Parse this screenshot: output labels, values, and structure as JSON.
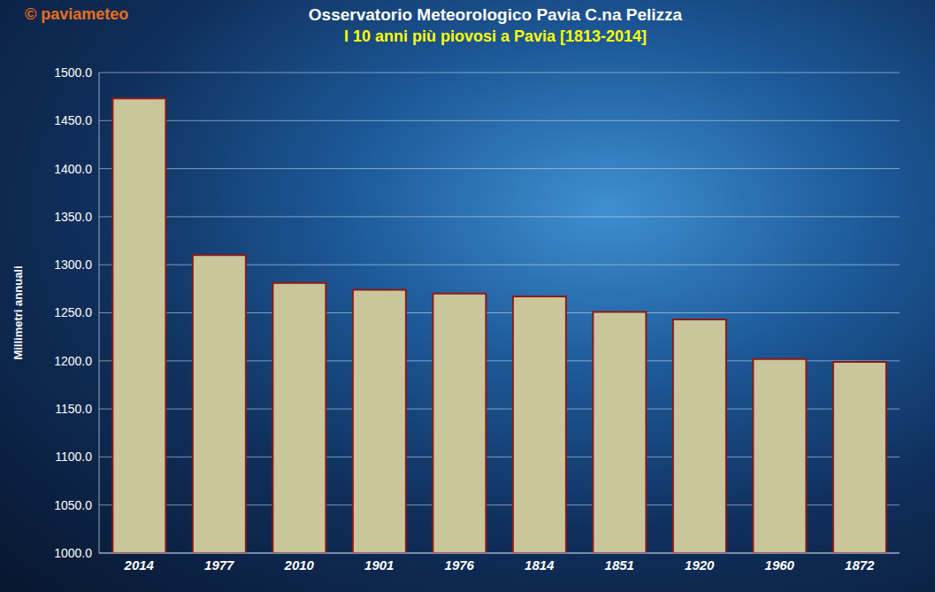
{
  "chart_data": {
    "type": "bar",
    "watermark": "© paviameteo",
    "title": "Osservatorio Meteorologico Pavia C.na Pelizza",
    "subtitle": "I 10 anni più piovosi a Pavia [1813-2014]",
    "y_label": "Millimetri annuali",
    "categories": [
      "2014",
      "1977",
      "2010",
      "1901",
      "1976",
      "1814",
      "1851",
      "1920",
      "1960",
      "1872"
    ],
    "values": [
      1473,
      1310,
      1281,
      1274,
      1270,
      1267,
      1251,
      1243,
      1202,
      1199
    ],
    "color": "#c9c69c",
    "ylim": [
      1000,
      1500
    ],
    "yticks": [
      {
        "value": 1000,
        "label": "1000.0"
      },
      {
        "value": 1050,
        "label": "1050.0"
      },
      {
        "value": 1100,
        "label": "1100.0"
      },
      {
        "value": 1150,
        "label": "1150.0"
      },
      {
        "value": 1200,
        "label": "1200.0"
      },
      {
        "value": 1250,
        "label": "1250.0"
      },
      {
        "value": 1300,
        "label": "1300.0"
      },
      {
        "value": 1350,
        "label": "1350.0"
      },
      {
        "value": 1400,
        "label": "1400.0"
      },
      {
        "value": 1450,
        "label": "1450.0"
      },
      {
        "value": 1500,
        "label": "1500.0"
      }
    ],
    "grid": true
  }
}
